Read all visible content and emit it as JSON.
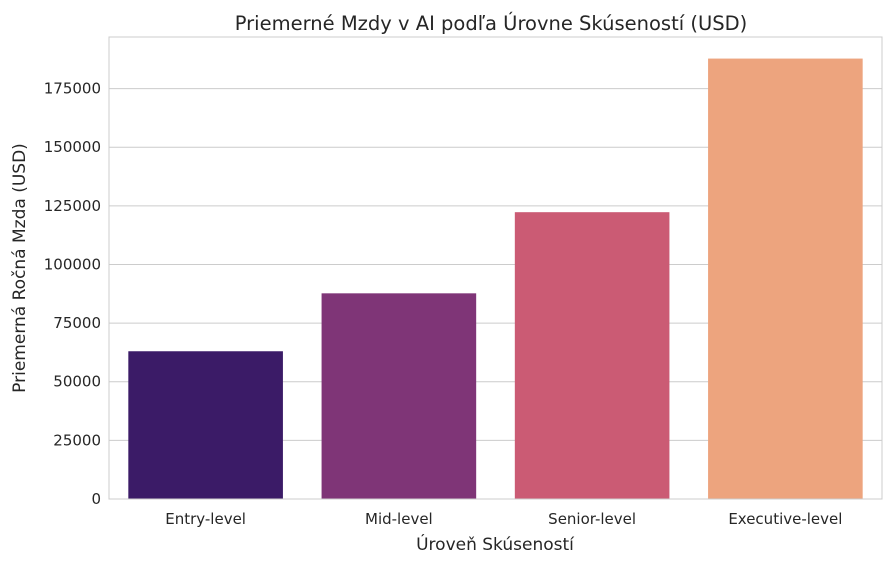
{
  "chart_data": {
    "type": "bar",
    "title": "Priemerné Mzdy v AI podľa Úrovne Skúseností (USD)",
    "xlabel": "Úroveň Skúseností",
    "ylabel": "Priemerná Ročná Mzda (USD)",
    "categories": [
      "Entry-level",
      "Mid-level",
      "Senior-level",
      "Executive-level"
    ],
    "values": [
      63000,
      87700,
      122300,
      187800
    ],
    "colors": [
      "#3b1b67",
      "#7f3577",
      "#cb5b74",
      "#eda47e"
    ],
    "ylim": [
      0,
      197000
    ],
    "yticks": [
      0,
      25000,
      50000,
      75000,
      100000,
      125000,
      150000,
      175000
    ],
    "ytick_labels": [
      "0",
      "25000",
      "50000",
      "75000",
      "100000",
      "125000",
      "150000",
      "175000"
    ],
    "grid": true,
    "grid_axis": "y",
    "legend": "none"
  }
}
